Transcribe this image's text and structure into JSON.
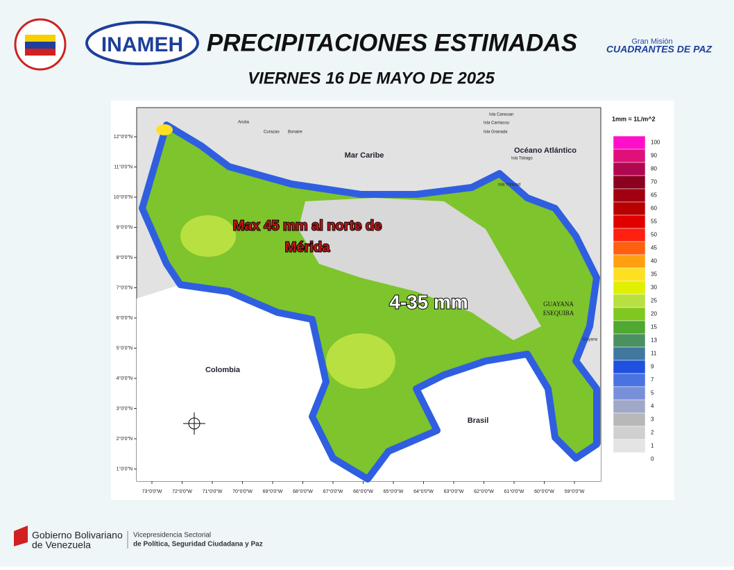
{
  "header": {
    "title": "PRECIPITACIONES ESTIMADAS",
    "subtitle": "VIERNES 16 DE MAYO DE 2025",
    "logo_left": "INAMEH",
    "logo_right_top": "Gran Misión",
    "logo_right_bottom": "CUADRANTES DE PAZ"
  },
  "map": {
    "places": [
      "Mar Caribe",
      "Océano Atlántico",
      "Colombia",
      "Brasil",
      "GUAYANA",
      "ESEQUIBA",
      "Guyana",
      "Aruba",
      "Curazao",
      "Bonaire",
      "Isla Canouan",
      "Isla Carriacou",
      "Isla Granada",
      "Isla Tobago",
      "Isla Trinidad"
    ],
    "annotations": [
      "Max 45 mm al norte de",
      "Mérida",
      "4-35 mm"
    ],
    "lat_ticks": [
      {
        "value": 12,
        "label": "12°0'0\"N"
      },
      {
        "value": 11,
        "label": "11°0'0\"N"
      },
      {
        "value": 10,
        "label": "10°0'0\"N"
      },
      {
        "value": 9,
        "label": "9°0'0\"N"
      },
      {
        "value": 8,
        "label": "8°0'0\"N"
      },
      {
        "value": 7,
        "label": "7°0'0\"N"
      },
      {
        "value": 6,
        "label": "6°0'0\"N"
      },
      {
        "value": 5,
        "label": "5°0'0\"N"
      },
      {
        "value": 4,
        "label": "4°0'0\"N"
      },
      {
        "value": 3,
        "label": "3°0'0\"N"
      },
      {
        "value": 2,
        "label": "2°0'0\"N"
      },
      {
        "value": 1,
        "label": "1°0'0\"N"
      }
    ],
    "lon_ticks": [
      {
        "value": 73,
        "label": "73°0'0\"W"
      },
      {
        "value": 72,
        "label": "72°0'0\"W"
      },
      {
        "value": 71,
        "label": "71°0'0\"W"
      },
      {
        "value": 70,
        "label": "70°0'0\"W"
      },
      {
        "value": 69,
        "label": "69°0'0\"W"
      },
      {
        "value": 68,
        "label": "68°0'0\"W"
      },
      {
        "value": 67,
        "label": "67°0'0\"W"
      },
      {
        "value": 66,
        "label": "66°0'0\"W"
      },
      {
        "value": 65,
        "label": "65°0'0\"W"
      },
      {
        "value": 64,
        "label": "64°0'0\"W"
      },
      {
        "value": 63,
        "label": "63°0'0\"W"
      },
      {
        "value": 62,
        "label": "62°0'0\"W"
      },
      {
        "value": 61,
        "label": "61°0'0\"W"
      },
      {
        "value": 60,
        "label": "60°0'0\"W"
      },
      {
        "value": 59,
        "label": "59°0'0\"W"
      }
    ]
  },
  "legend": {
    "title": "1mm = 1L/m^2",
    "items": [
      {
        "value": 100,
        "color": "#ff10c8"
      },
      {
        "value": 90,
        "color": "#e0107a"
      },
      {
        "value": 80,
        "color": "#b00850"
      },
      {
        "value": 70,
        "color": "#8c0020"
      },
      {
        "value": 65,
        "color": "#a00010"
      },
      {
        "value": 60,
        "color": "#b80000"
      },
      {
        "value": 55,
        "color": "#e00000"
      },
      {
        "value": 50,
        "color": "#ff2010"
      },
      {
        "value": 45,
        "color": "#ff6010"
      },
      {
        "value": 40,
        "color": "#ffa010"
      },
      {
        "value": 35,
        "color": "#ffe020"
      },
      {
        "value": 30,
        "color": "#e0f000"
      },
      {
        "value": 25,
        "color": "#b8e040"
      },
      {
        "value": 20,
        "color": "#80c820"
      },
      {
        "value": 15,
        "color": "#50a830"
      },
      {
        "value": 13,
        "color": "#4a9060"
      },
      {
        "value": 11,
        "color": "#4078a0"
      },
      {
        "value": 9,
        "color": "#2050e0"
      },
      {
        "value": 7,
        "color": "#4a72e0"
      },
      {
        "value": 5,
        "color": "#7890d8"
      },
      {
        "value": 4,
        "color": "#a0a8c8"
      },
      {
        "value": 3,
        "color": "#b8b8b8"
      },
      {
        "value": 2,
        "color": "#d0d0d0"
      },
      {
        "value": 1,
        "color": "#e4e4e4"
      },
      {
        "value": 0,
        "color": "#ffffff"
      }
    ]
  },
  "footer": {
    "gov_1": "Gobierno Bolivariano",
    "gov_2": "de Venezuela",
    "vice_1": "Vicepresidencia Sectorial",
    "vice_2": "de Política, Seguridad Ciudadana y Paz"
  }
}
